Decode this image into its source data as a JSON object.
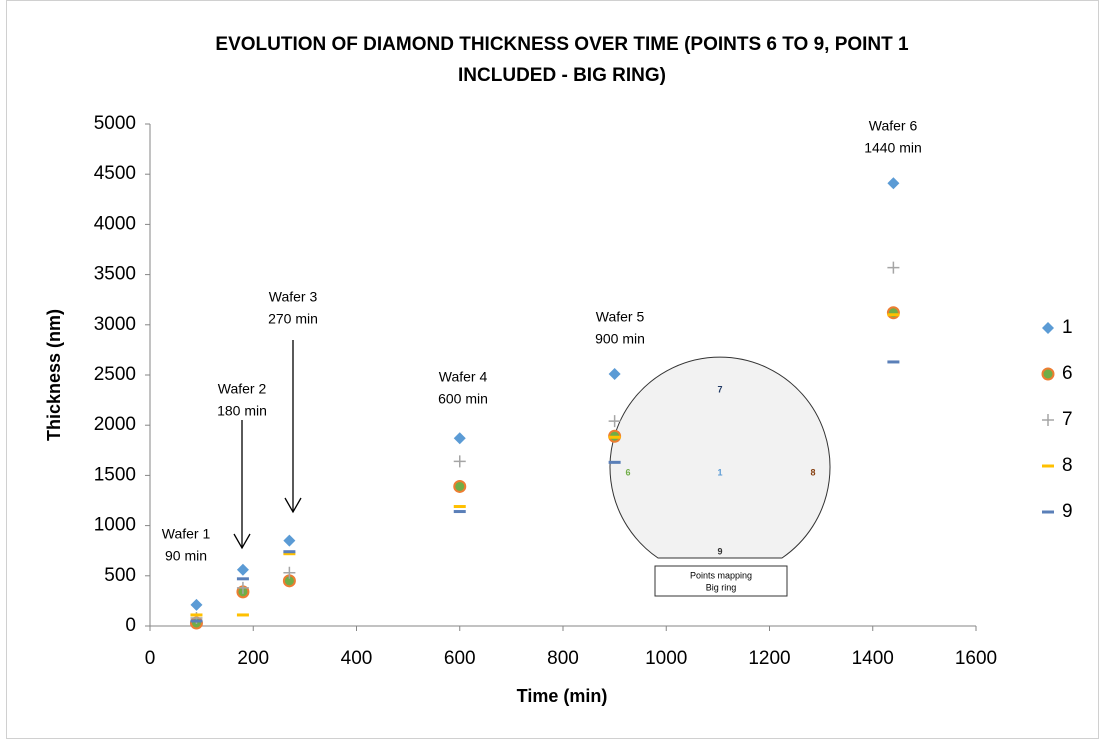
{
  "chart_data": {
    "type": "scatter",
    "title": [
      "EVOLUTION OF DIAMOND THICKNESS OVER TIME (POINTS 6 TO 9, POINT 1",
      "INCLUDED - BIG RING)"
    ],
    "x_label": "Time (min)",
    "y_label": "Thickness (nm)",
    "x": [
      90,
      180,
      270,
      600,
      900,
      1440
    ],
    "series": [
      {
        "name": "1",
        "marker": "diamond",
        "color": "#5b9bd5",
        "values": [
          210,
          560,
          850,
          1870,
          2510,
          4410
        ]
      },
      {
        "name": "6",
        "marker": "circle",
        "color": "#70ad47",
        "edge": "#ed7d31",
        "values": [
          30,
          340,
          450,
          1390,
          1890,
          3120
        ]
      },
      {
        "name": "7",
        "marker": "plus",
        "color": "#a5a5a5",
        "values": [
          80,
          380,
          530,
          1640,
          2040,
          3570
        ]
      },
      {
        "name": "8",
        "marker": "dash",
        "color": "#ffc000",
        "values": [
          110,
          110,
          720,
          1190,
          1880,
          3100
        ]
      },
      {
        "name": "9",
        "marker": "dash",
        "color": "#5a7fb8",
        "values": [
          50,
          470,
          740,
          1140,
          1630,
          2630
        ]
      }
    ],
    "xlim": [
      0,
      1600
    ],
    "xticks": [
      0,
      200,
      400,
      600,
      800,
      1000,
      1200,
      1400,
      1600
    ],
    "ylim": [
      0,
      5000
    ],
    "yticks": [
      0,
      500,
      1000,
      1500,
      2000,
      2500,
      3000,
      3500,
      4000,
      4500,
      5000
    ],
    "grid": false,
    "legend": "right",
    "annotations": [
      [
        "Wafer 1",
        "90 min"
      ],
      [
        "Wafer 2",
        "180 min"
      ],
      [
        "Wafer 3",
        "270 min"
      ],
      [
        "Wafer 4",
        "600 min"
      ],
      [
        "Wafer 5",
        "900 min"
      ],
      [
        "Wafer 6",
        "1440 min"
      ]
    ],
    "inset": {
      "points": [
        "7",
        "6",
        "1",
        "8",
        "9"
      ],
      "caption": [
        "Points mapping",
        "Big ring"
      ]
    }
  }
}
